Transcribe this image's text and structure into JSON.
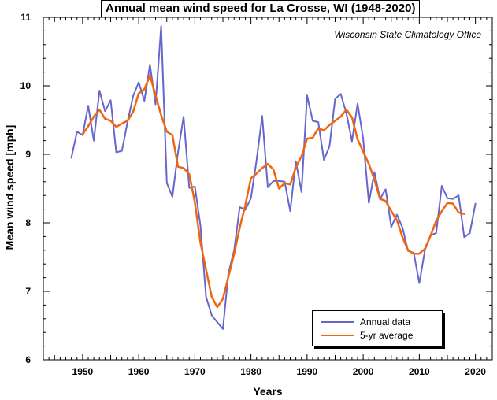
{
  "chart_data": {
    "type": "line",
    "title": "Annual mean wind speed for La Crosse, WI (1948-2020)",
    "subtitle": "Wisconsin State Climatology Office",
    "xlabel": "Years",
    "ylabel": "Mean wind speed [mph]",
    "xlim": [
      1943,
      2023
    ],
    "ylim": [
      6,
      11
    ],
    "x_ticks": [
      1950,
      1960,
      1970,
      1980,
      1990,
      2000,
      2010,
      2020
    ],
    "y_ticks": [
      6,
      7,
      8,
      9,
      10,
      11
    ],
    "grid": false,
    "legend_position": "bottom-right",
    "series": [
      {
        "name": "Annual data",
        "color": "#6666cc",
        "x": [
          1948,
          1949,
          1950,
          1951,
          1952,
          1953,
          1954,
          1955,
          1956,
          1957,
          1958,
          1959,
          1960,
          1961,
          1962,
          1963,
          1964,
          1965,
          1966,
          1967,
          1968,
          1969,
          1970,
          1971,
          1972,
          1973,
          1974,
          1975,
          1976,
          1977,
          1978,
          1979,
          1980,
          1981,
          1982,
          1983,
          1984,
          1985,
          1986,
          1987,
          1988,
          1989,
          1990,
          1991,
          1992,
          1993,
          1994,
          1995,
          1996,
          1997,
          1998,
          1999,
          2000,
          2001,
          2002,
          2003,
          2004,
          2005,
          2006,
          2007,
          2008,
          2009,
          2010,
          2011,
          2012,
          2013,
          2014,
          2015,
          2016,
          2017,
          2018,
          2019,
          2020
        ],
        "values": [
          8.95,
          9.33,
          9.28,
          9.71,
          9.2,
          9.93,
          9.63,
          9.79,
          9.03,
          9.05,
          9.47,
          9.85,
          10.05,
          9.78,
          10.31,
          9.73,
          10.87,
          8.58,
          8.38,
          9.03,
          9.55,
          8.51,
          8.53,
          7.96,
          6.92,
          6.65,
          6.55,
          6.45,
          7.27,
          7.6,
          8.23,
          8.19,
          8.36,
          8.92,
          9.56,
          8.52,
          8.61,
          8.61,
          8.6,
          8.17,
          8.9,
          8.45,
          9.86,
          9.49,
          9.47,
          8.92,
          9.12,
          9.81,
          9.88,
          9.6,
          9.19,
          9.74,
          9.23,
          8.29,
          8.74,
          8.35,
          8.49,
          7.94,
          8.12,
          7.93,
          7.59,
          7.56,
          7.12,
          7.6,
          7.82,
          7.85,
          8.54,
          8.36,
          8.35,
          8.4,
          7.79,
          7.85,
          8.28
        ]
      },
      {
        "name": "5-yr average",
        "color": "#ee6611",
        "x": [
          1950,
          1951,
          1952,
          1953,
          1954,
          1955,
          1956,
          1957,
          1958,
          1959,
          1960,
          1961,
          1962,
          1963,
          1964,
          1965,
          1966,
          1967,
          1968,
          1969,
          1970,
          1971,
          1972,
          1973,
          1974,
          1975,
          1976,
          1977,
          1978,
          1979,
          1980,
          1981,
          1982,
          1983,
          1984,
          1985,
          1986,
          1987,
          1988,
          1989,
          1990,
          1991,
          1992,
          1993,
          1994,
          1995,
          1996,
          1997,
          1998,
          1999,
          2000,
          2001,
          2002,
          2003,
          2004,
          2005,
          2006,
          2007,
          2008,
          2009,
          2010,
          2011,
          2012,
          2013,
          2014,
          2015,
          2016,
          2017,
          2018
        ],
        "values": [
          9.29,
          9.41,
          9.55,
          9.65,
          9.52,
          9.49,
          9.4,
          9.45,
          9.49,
          9.62,
          9.89,
          9.95,
          10.15,
          9.86,
          9.57,
          9.33,
          9.28,
          8.82,
          8.8,
          8.71,
          8.3,
          7.71,
          7.32,
          6.92,
          6.77,
          6.89,
          7.22,
          7.55,
          7.93,
          8.26,
          8.65,
          8.72,
          8.8,
          8.86,
          8.78,
          8.5,
          8.58,
          8.56,
          8.81,
          8.97,
          9.23,
          9.24,
          9.38,
          9.35,
          9.43,
          9.49,
          9.55,
          9.65,
          9.54,
          9.22,
          9.04,
          8.86,
          8.63,
          8.35,
          8.32,
          8.17,
          8.04,
          7.79,
          7.6,
          7.55,
          7.55,
          7.62,
          7.81,
          8.03,
          8.17,
          8.29,
          8.28,
          8.15,
          8.13
        ]
      }
    ]
  }
}
